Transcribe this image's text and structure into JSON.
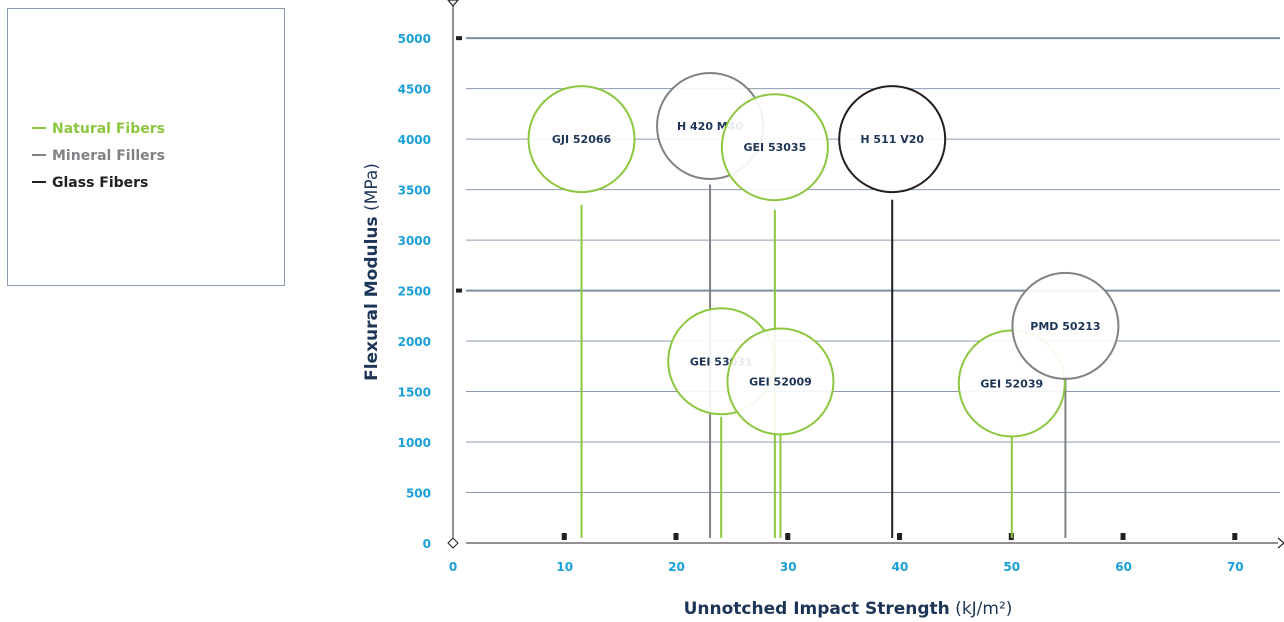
{
  "legend": {
    "items": [
      {
        "label": "Natural Fibers",
        "color": "#8dc63f"
      },
      {
        "label": "Mineral Fillers",
        "color": "#808285"
      },
      {
        "label": "Glass Fibers",
        "color": "#231f20"
      }
    ]
  },
  "chart_data": {
    "type": "scatter",
    "title": "",
    "xlabel": "Unnotched Impact Strength",
    "xlabel_unit": "(kJ/m²)",
    "ylabel": "Flexural Modulus",
    "ylabel_unit": "(MPa)",
    "xlim": [
      0,
      74
    ],
    "ylim": [
      0,
      5150
    ],
    "x_ticks": [
      0,
      10,
      20,
      30,
      40,
      50,
      60,
      70
    ],
    "y_ticks": [
      0,
      500,
      1000,
      1500,
      2000,
      2500,
      3000,
      3500,
      4000,
      4500,
      5000
    ],
    "grid": true,
    "legend_position": "outside-left",
    "colors": {
      "axis_tick": "#1aa0d8",
      "axis_title": "#1d3557",
      "grid": "#8a9bb0",
      "grid_major": "#7d8fa3"
    },
    "points": [
      {
        "label": "GJI 52066",
        "x": 11.5,
        "y": 3350,
        "bubble_y": 4000,
        "series": "Natural Fibers"
      },
      {
        "label": "H 420 M40",
        "x": 23.0,
        "y": 3550,
        "bubble_y": 4130,
        "series": "Mineral Fillers"
      },
      {
        "label": "GEI 53035",
        "x": 28.8,
        "y": 3300,
        "bubble_y": 3920,
        "series": "Natural Fibers"
      },
      {
        "label": "H 511 V20",
        "x": 39.3,
        "y": 3400,
        "bubble_y": 4000,
        "series": "Glass Fibers"
      },
      {
        "label": "GEI 53031",
        "x": 24.0,
        "y": 1250,
        "bubble_y": 1800,
        "series": "Natural Fibers"
      },
      {
        "label": "GEI 52009",
        "x": 29.3,
        "y": 1100,
        "bubble_y": 1600,
        "series": "Natural Fibers"
      },
      {
        "label": "GEI 52039",
        "x": 50.0,
        "y": 1080,
        "bubble_y": 1580,
        "series": "Natural Fibers"
      },
      {
        "label": "PMD 50213",
        "x": 54.8,
        "y": 1650,
        "bubble_y": 2150,
        "series": "Mineral Fillers"
      }
    ]
  }
}
